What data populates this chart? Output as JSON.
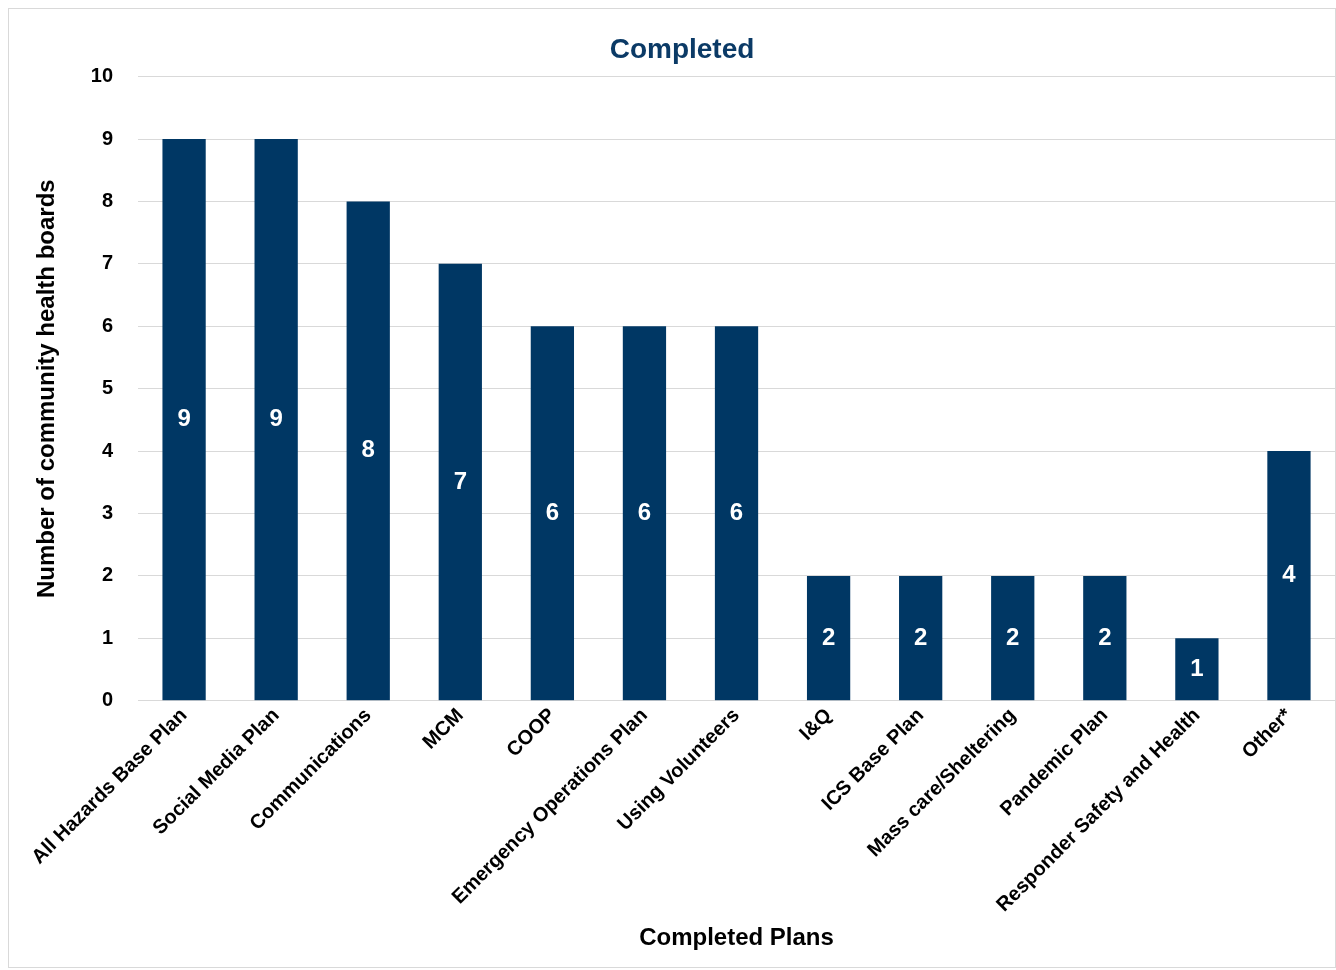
{
  "chart_data": {
    "type": "bar",
    "title": "Completed",
    "xlabel": "Completed Plans",
    "ylabel": "Number of community health boards",
    "categories": [
      "All Hazards Base Plan",
      "Social Media Plan",
      "Communications",
      "MCM",
      "COOP",
      "Emergency Operations Plan",
      "Using Volunteers",
      "I&Q",
      "ICS Base Plan",
      "Mass care/Sheltering",
      "Pandemic Plan",
      "Responder Safety and Health",
      "Other*"
    ],
    "values": [
      9,
      9,
      8,
      7,
      6,
      6,
      6,
      2,
      2,
      2,
      2,
      1,
      4
    ],
    "color": "#003764",
    "ylim": [
      0,
      10
    ],
    "yticks": [
      0,
      1,
      2,
      3,
      4,
      5,
      6,
      7,
      8,
      9,
      10
    ],
    "grid": "y",
    "legend": false,
    "data_labels": true
  }
}
